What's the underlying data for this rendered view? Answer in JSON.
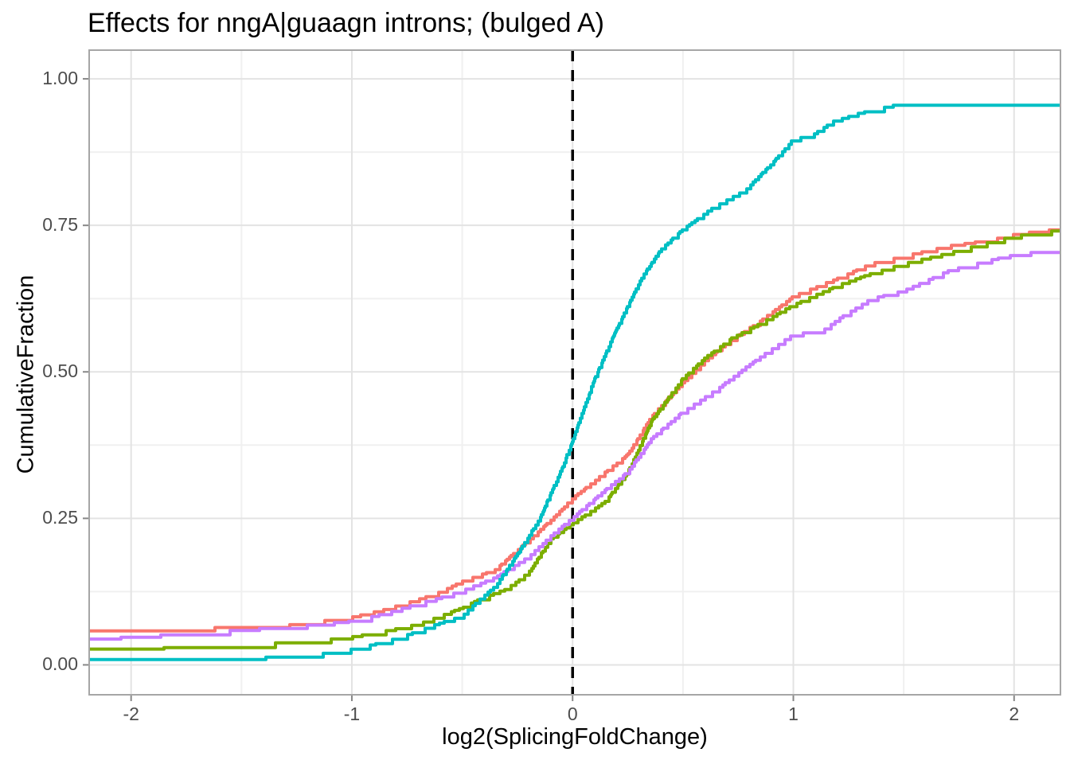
{
  "title": "Effects for nngA|guaagn introns; (bulged A)",
  "chart_data": {
    "type": "line",
    "subtype": "ecdf-step-curves",
    "title": "Effects for nngA|guaagn introns; (bulged A)",
    "xlabel": "log2(SplicingFoldChange)",
    "ylabel": "CumulativeFraction",
    "xlim": [
      -2.19,
      2.21
    ],
    "ylim": [
      -0.051,
      1.049
    ],
    "grid": true,
    "legend_position": "none",
    "x_ticks": [
      {
        "v": -2,
        "label": "-2"
      },
      {
        "v": -1,
        "label": "-1"
      },
      {
        "v": 0,
        "label": "0"
      },
      {
        "v": 1,
        "label": "1"
      },
      {
        "v": 2,
        "label": "2"
      }
    ],
    "y_ticks": [
      {
        "v": 0.0,
        "label": "0.00"
      },
      {
        "v": 0.25,
        "label": "0.25"
      },
      {
        "v": 0.5,
        "label": "0.50"
      },
      {
        "v": 0.75,
        "label": "0.75"
      },
      {
        "v": 1.0,
        "label": "1.00"
      }
    ],
    "x_minor_ticks": [
      -1.5,
      -0.5,
      0.5,
      1.5
    ],
    "y_minor_ticks": [
      0.125,
      0.375,
      0.625,
      0.875
    ],
    "reference_line": {
      "orientation": "vertical",
      "x": 0,
      "style": "dashed",
      "color": "#000000"
    },
    "series": [
      {
        "name": "curve-salmon",
        "color": "#F8766D",
        "points": [
          [
            -2.19,
            0.058
          ],
          [
            -2.0,
            0.06
          ],
          [
            -1.7,
            0.063
          ],
          [
            -1.5,
            0.065
          ],
          [
            -1.35,
            0.066
          ],
          [
            -1.2,
            0.072
          ],
          [
            -1.0,
            0.082
          ],
          [
            -0.85,
            0.095
          ],
          [
            -0.7,
            0.112
          ],
          [
            -0.6,
            0.125
          ],
          [
            -0.5,
            0.143
          ],
          [
            -0.35,
            0.163
          ],
          [
            -0.2,
            0.213
          ],
          [
            -0.1,
            0.247
          ],
          [
            0.0,
            0.285
          ],
          [
            0.15,
            0.33
          ],
          [
            0.25,
            0.36
          ],
          [
            0.36,
            0.426
          ],
          [
            0.5,
            0.483
          ],
          [
            0.6,
            0.52
          ],
          [
            0.72,
            0.555
          ],
          [
            0.86,
            0.59
          ],
          [
            1.0,
            0.63
          ],
          [
            1.2,
            0.66
          ],
          [
            1.35,
            0.685
          ],
          [
            1.5,
            0.698
          ],
          [
            1.7,
            0.715
          ],
          [
            1.9,
            0.726
          ],
          [
            2.0,
            0.735
          ],
          [
            2.1,
            0.74
          ],
          [
            2.2,
            0.744
          ]
        ]
      },
      {
        "name": "curve-olive",
        "color": "#7CAE00",
        "points": [
          [
            -2.19,
            0.027
          ],
          [
            -1.8,
            0.03
          ],
          [
            -1.5,
            0.035
          ],
          [
            -1.2,
            0.04
          ],
          [
            -1.0,
            0.048
          ],
          [
            -0.85,
            0.058
          ],
          [
            -0.7,
            0.07
          ],
          [
            -0.5,
            0.098
          ],
          [
            -0.42,
            0.113
          ],
          [
            -0.3,
            0.13
          ],
          [
            -0.2,
            0.158
          ],
          [
            -0.1,
            0.215
          ],
          [
            0.0,
            0.242
          ],
          [
            0.15,
            0.28
          ],
          [
            0.25,
            0.33
          ],
          [
            0.36,
            0.419
          ],
          [
            0.5,
            0.49
          ],
          [
            0.6,
            0.525
          ],
          [
            0.72,
            0.558
          ],
          [
            0.86,
            0.585
          ],
          [
            1.0,
            0.615
          ],
          [
            1.2,
            0.648
          ],
          [
            1.35,
            0.668
          ],
          [
            1.5,
            0.685
          ],
          [
            1.7,
            0.703
          ],
          [
            1.85,
            0.718
          ],
          [
            2.0,
            0.732
          ],
          [
            2.2,
            0.742
          ]
        ]
      },
      {
        "name": "curve-purple",
        "color": "#C77CFF",
        "points": [
          [
            -2.19,
            0.044
          ],
          [
            -2.0,
            0.048
          ],
          [
            -1.7,
            0.055
          ],
          [
            -1.5,
            0.06
          ],
          [
            -1.2,
            0.068
          ],
          [
            -1.0,
            0.075
          ],
          [
            -0.85,
            0.088
          ],
          [
            -0.7,
            0.105
          ],
          [
            -0.6,
            0.115
          ],
          [
            -0.5,
            0.127
          ],
          [
            -0.35,
            0.15
          ],
          [
            -0.2,
            0.185
          ],
          [
            -0.1,
            0.22
          ],
          [
            0.0,
            0.252
          ],
          [
            0.15,
            0.3
          ],
          [
            0.25,
            0.33
          ],
          [
            0.36,
            0.388
          ],
          [
            0.5,
            0.433
          ],
          [
            0.65,
            0.47
          ],
          [
            0.8,
            0.513
          ],
          [
            1.0,
            0.565
          ],
          [
            1.13,
            0.57
          ],
          [
            1.2,
            0.59
          ],
          [
            1.35,
            0.625
          ],
          [
            1.5,
            0.639
          ],
          [
            1.7,
            0.673
          ],
          [
            1.9,
            0.692
          ],
          [
            2.0,
            0.7
          ],
          [
            2.1,
            0.705
          ],
          [
            2.2,
            0.707
          ]
        ]
      },
      {
        "name": "curve-teal",
        "color": "#00BFC4",
        "points": [
          [
            -2.19,
            0.009
          ],
          [
            -1.9,
            0.01
          ],
          [
            -1.6,
            0.011
          ],
          [
            -1.4,
            0.013
          ],
          [
            -1.2,
            0.016
          ],
          [
            -1.0,
            0.027
          ],
          [
            -0.85,
            0.04
          ],
          [
            -0.7,
            0.058
          ],
          [
            -0.6,
            0.072
          ],
          [
            -0.5,
            0.084
          ],
          [
            -0.42,
            0.113
          ],
          [
            -0.35,
            0.135
          ],
          [
            -0.25,
            0.19
          ],
          [
            -0.15,
            0.25
          ],
          [
            -0.05,
            0.335
          ],
          [
            0.0,
            0.385
          ],
          [
            0.1,
            0.49
          ],
          [
            0.2,
            0.575
          ],
          [
            0.31,
            0.66
          ],
          [
            0.4,
            0.71
          ],
          [
            0.5,
            0.744
          ],
          [
            0.64,
            0.782
          ],
          [
            0.78,
            0.81
          ],
          [
            0.9,
            0.855
          ],
          [
            1.0,
            0.898
          ],
          [
            1.08,
            0.903
          ],
          [
            1.18,
            0.928
          ],
          [
            1.3,
            0.942
          ],
          [
            1.45,
            0.955
          ],
          [
            1.6,
            0.957
          ],
          [
            2.2,
            0.958
          ]
        ]
      }
    ]
  },
  "style_colors": {
    "panel_border": "#a6a6a6",
    "tick_mark": "#878787",
    "grid_major": "#e3e3e3",
    "grid_minor": "#f0f0f0",
    "tick_text": "#4d4d4d",
    "title_text": "#000000"
  }
}
